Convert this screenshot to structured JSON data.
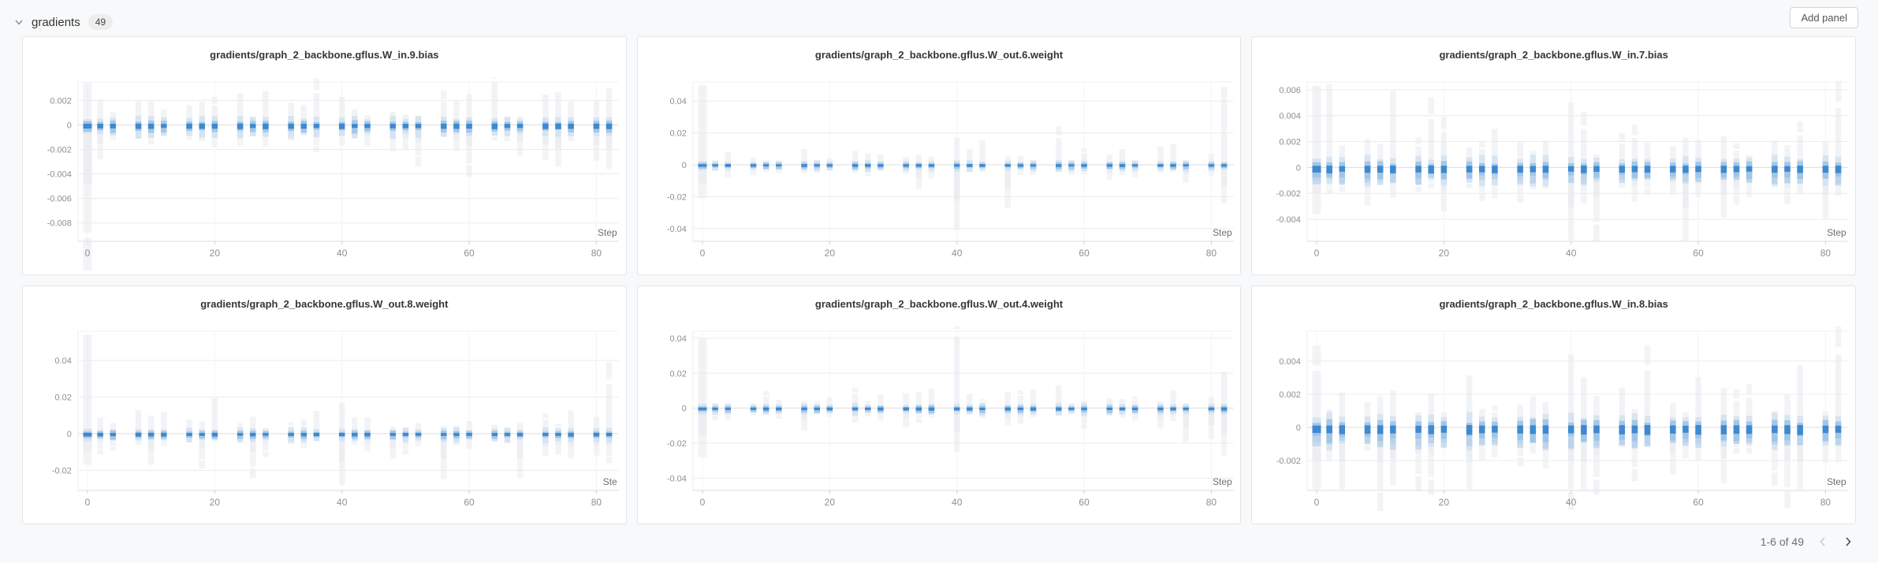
{
  "header": {
    "section_title": "gradients",
    "count": "49",
    "add_panel_label": "Add panel"
  },
  "pagination": {
    "label": "1-6 of 49",
    "prev_enabled": false,
    "next_enabled": true
  },
  "colors": {
    "accent_blue": "#3b87cd",
    "mid_blue": "#9cc2e5",
    "light_blue": "#cfe0f0",
    "ghost": "#e7eaee",
    "grid": "#ececec",
    "axis": "#dcdcdc",
    "tick_text": "#8f8f8f",
    "panel_border": "#e3e5e7",
    "background": "#f8f9fa"
  },
  "chart_data": [
    {
      "type": "gradient-histogram",
      "title": "gradients/graph_2_backbone.gflus.W_in.9.bias",
      "xlabel": "Step",
      "x_ticks": [
        0,
        20,
        40,
        60,
        80
      ],
      "x_range": [
        -1.5,
        83.5
      ],
      "steps": [
        0,
        2,
        4,
        8,
        10,
        12,
        16,
        18,
        20,
        24,
        26,
        28,
        32,
        34,
        36,
        40,
        42,
        44,
        48,
        50,
        52,
        56,
        58,
        60,
        64,
        66,
        68,
        72,
        74,
        76,
        80,
        82
      ],
      "ylim": [
        -0.0095,
        0.0035
      ],
      "y_tick_values": [
        0.002,
        0,
        -0.002,
        -0.004,
        -0.006,
        -0.008
      ],
      "y_tick_labels": [
        "0.002",
        "0",
        "-0.002",
        "-0.004",
        "-0.006",
        "-0.008"
      ],
      "spread": 0.001,
      "seed": 11,
      "outliers": [
        {
          "step": 0,
          "top": 0.0034,
          "bottom": -0.0088,
          "wide": true
        },
        {
          "step": 2,
          "bottom": -0.0028
        },
        {
          "step": 36,
          "top": 0.0026
        },
        {
          "step": 74,
          "bottom": -0.0034
        },
        {
          "step": 82,
          "top": 0.003,
          "bottom": -0.0036
        }
      ]
    },
    {
      "type": "gradient-histogram",
      "title": "gradients/graph_2_backbone.gflus.W_out.6.weight",
      "xlabel": "Step",
      "x_ticks": [
        0,
        20,
        40,
        60,
        80
      ],
      "x_range": [
        -1.5,
        83.5
      ],
      "steps": [
        0,
        2,
        4,
        8,
        10,
        12,
        16,
        18,
        20,
        24,
        26,
        28,
        32,
        34,
        36,
        40,
        42,
        44,
        48,
        50,
        52,
        56,
        58,
        60,
        64,
        66,
        68,
        72,
        74,
        76,
        80,
        82
      ],
      "ylim": [
        -0.048,
        0.052
      ],
      "y_tick_values": [
        0.04,
        0.02,
        0,
        -0.02,
        -0.04
      ],
      "y_tick_labels": [
        "0.04",
        "0.02",
        "0",
        "-0.02",
        "-0.04"
      ],
      "spread": 0.004,
      "seed": 22,
      "outliers": [
        {
          "step": 0,
          "top": 0.05,
          "bottom": -0.021,
          "wide": true
        },
        {
          "step": 40,
          "top": 0.017,
          "bottom": -0.041
        },
        {
          "step": 48,
          "bottom": -0.027
        },
        {
          "step": 82,
          "top": 0.049,
          "bottom": -0.024
        }
      ]
    },
    {
      "type": "gradient-histogram",
      "title": "gradients/graph_2_backbone.gflus.W_in.7.bias",
      "xlabel": "Step",
      "x_ticks": [
        0,
        20,
        40,
        60,
        80
      ],
      "x_range": [
        -1.5,
        83.5
      ],
      "steps": [
        0,
        2,
        4,
        8,
        10,
        12,
        16,
        18,
        20,
        24,
        26,
        28,
        32,
        34,
        36,
        40,
        42,
        44,
        48,
        50,
        52,
        56,
        58,
        60,
        64,
        66,
        68,
        72,
        74,
        76,
        80,
        82
      ],
      "ylim": [
        -0.0057,
        0.0066
      ],
      "y_tick_values": [
        0.006,
        0.004,
        0.002,
        0,
        -0.002,
        -0.004
      ],
      "y_tick_labels": [
        "0.006",
        "0.004",
        "0.002",
        "0",
        "-0.002",
        "-0.004"
      ],
      "spread": 0.0013,
      "seed": 33,
      "dense": true,
      "outliers": [
        {
          "step": 0,
          "top": 0.0063,
          "bottom": -0.0036,
          "wide": true
        },
        {
          "step": 28,
          "bottom": -0.0024
        },
        {
          "step": 40,
          "top": 0.005,
          "bottom": -0.0056
        },
        {
          "step": 74,
          "bottom": -0.0028
        },
        {
          "step": 82,
          "top": 0.0046,
          "bottom": -0.0022
        }
      ]
    },
    {
      "type": "gradient-histogram",
      "title": "gradients/graph_2_backbone.gflus.W_out.8.weight",
      "xlabel": "Ste",
      "x_ticks": [
        0,
        20,
        40,
        60,
        80
      ],
      "x_range": [
        -1.5,
        83.5
      ],
      "steps": [
        0,
        2,
        4,
        8,
        10,
        12,
        16,
        18,
        20,
        24,
        26,
        28,
        32,
        34,
        36,
        40,
        42,
        44,
        48,
        50,
        52,
        56,
        58,
        60,
        64,
        66,
        68,
        72,
        74,
        76,
        80,
        82
      ],
      "ylim": [
        -0.031,
        0.056
      ],
      "y_tick_values": [
        0.04,
        0.02,
        0,
        -0.02
      ],
      "y_tick_labels": [
        "0.04",
        "0.02",
        "0",
        "-0.02"
      ],
      "spread": 0.0045,
      "seed": 44,
      "outliers": [
        {
          "step": 0,
          "top": 0.054,
          "bottom": -0.017,
          "wide": true
        },
        {
          "step": 10,
          "bottom": -0.017
        },
        {
          "step": 26,
          "bottom": -0.018
        },
        {
          "step": 40,
          "top": 0.017,
          "bottom": -0.028
        },
        {
          "step": 82,
          "top": 0.027,
          "bottom": -0.012
        }
      ]
    },
    {
      "type": "gradient-histogram",
      "title": "gradients/graph_2_backbone.gflus.W_out.4.weight",
      "xlabel": "Step",
      "x_ticks": [
        0,
        20,
        40,
        60,
        80
      ],
      "x_range": [
        -1.5,
        83.5
      ],
      "steps": [
        0,
        2,
        4,
        8,
        10,
        12,
        16,
        18,
        20,
        24,
        26,
        28,
        32,
        34,
        36,
        40,
        42,
        44,
        48,
        50,
        52,
        56,
        58,
        60,
        64,
        66,
        68,
        72,
        74,
        76,
        80,
        82
      ],
      "ylim": [
        -0.047,
        0.044
      ],
      "y_tick_values": [
        0.04,
        0.02,
        0,
        -0.02,
        -0.04
      ],
      "y_tick_labels": [
        "0.04",
        "0.02",
        "0",
        "-0.02",
        "-0.04"
      ],
      "spread": 0.004,
      "seed": 55,
      "outliers": [
        {
          "step": 0,
          "top": 0.04,
          "bottom": -0.028,
          "wide": true
        },
        {
          "step": 40,
          "top": 0.041,
          "bottom": -0.025
        },
        {
          "step": 48,
          "bottom": -0.01
        },
        {
          "step": 56,
          "top": 0.013
        },
        {
          "step": 82,
          "top": 0.021,
          "bottom": -0.027
        }
      ]
    },
    {
      "type": "gradient-histogram",
      "title": "gradients/graph_2_backbone.gflus.W_in.8.bias",
      "xlabel": "Step",
      "x_ticks": [
        0,
        20,
        40,
        60,
        80
      ],
      "x_range": [
        -1.5,
        83.5
      ],
      "steps": [
        0,
        2,
        4,
        8,
        10,
        12,
        16,
        18,
        20,
        24,
        26,
        28,
        32,
        34,
        36,
        40,
        42,
        44,
        48,
        50,
        52,
        56,
        58,
        60,
        64,
        66,
        68,
        72,
        74,
        76,
        80,
        82
      ],
      "ylim": [
        -0.0038,
        0.0058
      ],
      "y_tick_values": [
        0.004,
        0.002,
        0,
        -0.002
      ],
      "y_tick_labels": [
        "0.004",
        "0.002",
        "0",
        "-0.002"
      ],
      "spread": 0.0013,
      "seed": 66,
      "dense": true,
      "outliers": [
        {
          "step": 0,
          "top": 0.0034,
          "bottom": -0.004,
          "wide": true
        },
        {
          "step": 12,
          "bottom": -0.0035
        },
        {
          "step": 18,
          "bottom": -0.003
        },
        {
          "step": 40,
          "top": 0.0044,
          "bottom": -0.0037
        },
        {
          "step": 44,
          "bottom": -0.003
        },
        {
          "step": 74,
          "bottom": -0.0036
        },
        {
          "step": 82,
          "top": 0.0044,
          "bottom": -0.0021
        }
      ]
    }
  ]
}
